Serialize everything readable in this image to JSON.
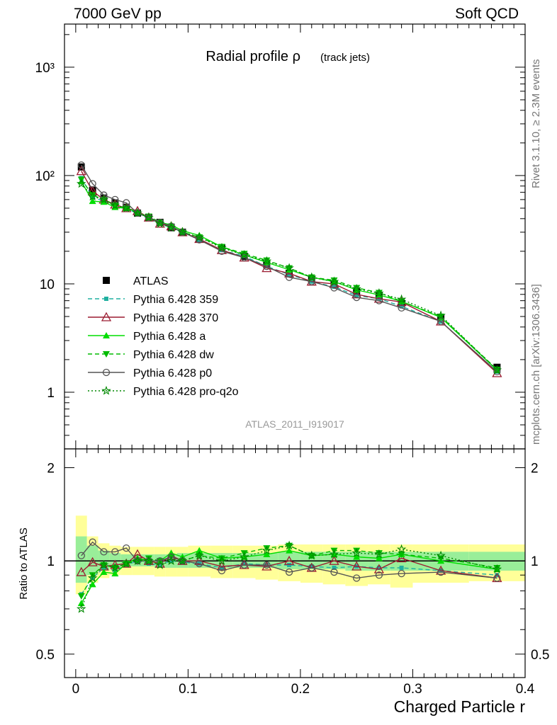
{
  "header": {
    "left": "7000 GeV pp",
    "right": "Soft QCD"
  },
  "side_labels": {
    "rivet": "Rivet 3.1.10, ≥ 2.3M events",
    "mcplots": "mcplots.cern.ch [arXiv:1306.3436]"
  },
  "chart_data": [
    {
      "type": "line",
      "title": "Radial profile ρ",
      "title_suffix": "(track jets)",
      "analysis_label": "ATLAS_2011_I919017",
      "xlabel": "Charged Particle r",
      "ylabel": "",
      "xlim": [
        -0.01,
        0.4
      ],
      "ylim": [
        0.3,
        2500
      ],
      "log_y": true,
      "yticks": [
        "1",
        "10",
        "10²",
        "10³"
      ],
      "legend_position": "left-middle",
      "x": [
        0.005,
        0.015,
        0.025,
        0.035,
        0.045,
        0.055,
        0.065,
        0.075,
        0.085,
        0.095,
        0.11,
        0.13,
        0.15,
        0.17,
        0.19,
        0.21,
        0.23,
        0.25,
        0.27,
        0.29,
        0.325,
        0.375
      ],
      "series": [
        {
          "name": "ATLAS",
          "color": "#000000",
          "marker": "square",
          "line": "none",
          "values": [
            120,
            73,
            62,
            56,
            51,
            45,
            41,
            37,
            33,
            30,
            26,
            21.5,
            18,
            15,
            12.5,
            11,
            10,
            8.5,
            7.8,
            6.6,
            4.9,
            1.7
          ]
        },
        {
          "name": "Pythia 6.428 359",
          "color": "#20b0a0",
          "marker": "small-square",
          "line": "dashed",
          "values": [
            95,
            63,
            58,
            52,
            49,
            45,
            40,
            36,
            33,
            30,
            25.5,
            20.5,
            18,
            14.5,
            12.2,
            10.5,
            9.4,
            7.8,
            7.3,
            6.2,
            4.5,
            1.55
          ]
        },
        {
          "name": "Pythia 6.428 370",
          "color": "#9b1c31",
          "marker": "open-triangle",
          "line": "solid",
          "values": [
            110,
            72,
            60,
            54,
            50,
            47,
            41,
            36,
            34,
            30,
            26,
            20.5,
            17.5,
            14,
            12.5,
            10.5,
            10,
            8,
            7.3,
            6.8,
            4.5,
            1.5
          ]
        },
        {
          "name": "Pythia 6.428 a",
          "color": "#00dd00",
          "marker": "filled-triangle",
          "line": "solid",
          "values": [
            88,
            58,
            57,
            51,
            50,
            46,
            41,
            37,
            35,
            31,
            28,
            22,
            18.5,
            15.8,
            13.5,
            11.5,
            10.5,
            8.8,
            7.9,
            6.9,
            4.9,
            1.6
          ]
        },
        {
          "name": "Pythia 6.428 dw",
          "color": "#00bb00",
          "marker": "filled-down-triangle",
          "line": "dashed",
          "values": [
            92,
            66,
            60,
            53,
            50,
            45,
            42,
            37,
            34,
            30,
            27,
            22,
            19,
            16.5,
            14,
            11.5,
            10.8,
            9.2,
            8.3,
            6.9,
            5,
            1.62
          ]
        },
        {
          "name": "Pythia 6.428 p0",
          "color": "#555555",
          "marker": "open-circle",
          "line": "solid",
          "values": [
            125,
            84,
            66,
            60,
            56,
            45,
            41,
            37,
            34,
            30,
            25.5,
            20,
            17.5,
            14.5,
            11.5,
            10.5,
            9.2,
            7.5,
            7,
            6,
            4.5,
            1.55
          ]
        },
        {
          "name": "Pythia 6.428 pro-q2o",
          "color": "#008800",
          "marker": "open-star",
          "line": "dotted",
          "values": [
            84,
            64,
            60,
            53,
            50,
            45,
            41,
            36,
            33,
            30,
            27,
            21.5,
            18.5,
            16.2,
            14,
            11.5,
            10.5,
            9,
            8.2,
            7.2,
            5.1,
            1.6
          ]
        }
      ]
    },
    {
      "type": "line",
      "title": "",
      "xlabel": "Charged Particle r",
      "ylabel": "Ratio to ATLAS",
      "xlim": [
        -0.01,
        0.4
      ],
      "ylim": [
        0.42,
        2.3
      ],
      "log_y": true,
      "xticks": [
        "0",
        "0.1",
        "0.2",
        "0.3",
        "0.4"
      ],
      "yticks": [
        "0.5",
        "1",
        "2"
      ],
      "reference_line": 1,
      "band_edges": [
        0,
        0.01,
        0.02,
        0.03,
        0.04,
        0.05,
        0.06,
        0.07,
        0.08,
        0.09,
        0.1,
        0.12,
        0.14,
        0.16,
        0.18,
        0.2,
        0.22,
        0.24,
        0.26,
        0.28,
        0.3,
        0.35,
        0.4
      ],
      "band_inner": [
        [
          0.85,
          1.2
        ],
        [
          0.9,
          1.12
        ],
        [
          0.93,
          1.08
        ],
        [
          0.95,
          1.06
        ],
        [
          0.96,
          1.05
        ],
        [
          0.96,
          1.05
        ],
        [
          0.96,
          1.05
        ],
        [
          0.95,
          1.05
        ],
        [
          0.95,
          1.05
        ],
        [
          0.95,
          1.06
        ],
        [
          0.95,
          1.06
        ],
        [
          0.95,
          1.06
        ],
        [
          0.95,
          1.06
        ],
        [
          0.95,
          1.06
        ],
        [
          0.94,
          1.07
        ],
        [
          0.94,
          1.07
        ],
        [
          0.94,
          1.07
        ],
        [
          0.93,
          1.07
        ],
        [
          0.93,
          1.07
        ],
        [
          0.93,
          1.07
        ],
        [
          0.93,
          1.07
        ],
        [
          0.93,
          1.07
        ]
      ],
      "band_outer": [
        [
          0.78,
          1.4
        ],
        [
          0.85,
          1.2
        ],
        [
          0.88,
          1.14
        ],
        [
          0.9,
          1.12
        ],
        [
          0.9,
          1.11
        ],
        [
          0.9,
          1.11
        ],
        [
          0.9,
          1.11
        ],
        [
          0.89,
          1.11
        ],
        [
          0.89,
          1.11
        ],
        [
          0.89,
          1.11
        ],
        [
          0.89,
          1.12
        ],
        [
          0.88,
          1.12
        ],
        [
          0.88,
          1.12
        ],
        [
          0.87,
          1.12
        ],
        [
          0.86,
          1.13
        ],
        [
          0.85,
          1.13
        ],
        [
          0.84,
          1.13
        ],
        [
          0.83,
          1.13
        ],
        [
          0.84,
          1.13
        ],
        [
          0.82,
          1.13
        ],
        [
          0.85,
          1.13
        ],
        [
          0.86,
          1.13
        ]
      ],
      "x": [
        0.005,
        0.015,
        0.025,
        0.035,
        0.045,
        0.055,
        0.065,
        0.075,
        0.085,
        0.095,
        0.11,
        0.13,
        0.15,
        0.17,
        0.19,
        0.21,
        0.23,
        0.25,
        0.27,
        0.29,
        0.325,
        0.375
      ],
      "series": [
        {
          "name": "Pythia 6.428 359",
          "color": "#20b0a0",
          "marker": "small-square",
          "line": "dashed",
          "values": [
            0.78,
            0.88,
            0.95,
            0.93,
            0.97,
            1.0,
            0.98,
            0.97,
            1.0,
            0.99,
            0.98,
            0.95,
            0.98,
            0.97,
            0.97,
            0.96,
            0.95,
            0.96,
            0.95,
            0.95,
            0.93,
            0.9
          ]
        },
        {
          "name": "Pythia 6.428 370",
          "color": "#9b1c31",
          "marker": "open-triangle",
          "line": "solid",
          "values": [
            0.92,
            0.99,
            0.96,
            0.97,
            0.98,
            1.05,
            1.0,
            0.98,
            1.04,
            1.0,
            1.0,
            0.96,
            0.97,
            0.96,
            1.0,
            0.95,
            1.0,
            0.96,
            0.94,
            1.02,
            0.93,
            0.88
          ]
        },
        {
          "name": "Pythia 6.428 a",
          "color": "#00dd00",
          "marker": "filled-triangle",
          "line": "solid",
          "values": [
            0.73,
            0.84,
            0.92,
            0.91,
            0.98,
            1.02,
            1.0,
            1.0,
            1.06,
            1.03,
            1.08,
            1.02,
            1.03,
            1.05,
            1.08,
            1.04,
            1.05,
            1.03,
            1.02,
            1.05,
            1.0,
            0.94
          ]
        },
        {
          "name": "Pythia 6.428 dw",
          "color": "#00bb00",
          "marker": "filled-down-triangle",
          "line": "dashed",
          "values": [
            0.77,
            0.9,
            0.97,
            0.95,
            0.98,
            1.0,
            1.02,
            1.0,
            1.03,
            1.0,
            1.04,
            1.02,
            1.06,
            1.1,
            1.12,
            1.04,
            1.08,
            1.08,
            1.06,
            1.05,
            1.02,
            0.95
          ]
        },
        {
          "name": "Pythia 6.428 p0",
          "color": "#555555",
          "marker": "open-circle",
          "line": "solid",
          "values": [
            1.04,
            1.15,
            1.07,
            1.07,
            1.1,
            1.0,
            1.0,
            1.0,
            1.03,
            1.0,
            0.98,
            0.93,
            0.97,
            0.97,
            0.92,
            0.95,
            0.92,
            0.88,
            0.9,
            0.91,
            0.92,
            0.88
          ]
        },
        {
          "name": "Pythia 6.428 pro-q2o",
          "color": "#008800",
          "marker": "open-star",
          "line": "dotted",
          "values": [
            0.7,
            0.88,
            0.97,
            0.95,
            0.98,
            1.0,
            1.0,
            0.97,
            1.0,
            1.0,
            1.04,
            1.0,
            1.03,
            1.08,
            1.12,
            1.04,
            1.05,
            1.06,
            1.05,
            1.09,
            1.04,
            0.94
          ]
        }
      ]
    }
  ]
}
